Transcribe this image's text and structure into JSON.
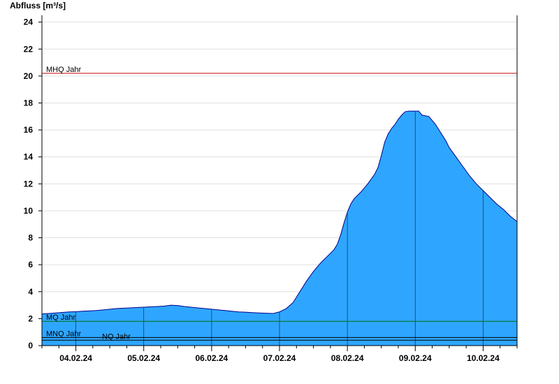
{
  "chart_data": {
    "type": "area",
    "ylabel": "Abfluss [m³/s]",
    "xlabel": "",
    "title": "",
    "ylim": [
      0,
      24.5
    ],
    "yticks": [
      0,
      2,
      4,
      6,
      8,
      10,
      12,
      14,
      16,
      18,
      20,
      22,
      24
    ],
    "x_start_day": 3.5,
    "x_end_day": 10.5,
    "x_tick_labels": [
      "04.02.24",
      "05.02.24",
      "06.02.24",
      "07.02.24",
      "08.02.24",
      "09.02.24",
      "10.02.24"
    ],
    "grid": "horizontal",
    "series": [
      {
        "values": [
          [
            3.5,
            2.35
          ],
          [
            3.6,
            2.38
          ],
          [
            3.7,
            2.42
          ],
          [
            3.8,
            2.46
          ],
          [
            3.9,
            2.5
          ],
          [
            4.0,
            2.52
          ],
          [
            4.1,
            2.55
          ],
          [
            4.2,
            2.58
          ],
          [
            4.3,
            2.6
          ],
          [
            4.4,
            2.65
          ],
          [
            4.5,
            2.7
          ],
          [
            4.6,
            2.75
          ],
          [
            4.7,
            2.78
          ],
          [
            4.8,
            2.8
          ],
          [
            4.9,
            2.83
          ],
          [
            5.0,
            2.85
          ],
          [
            5.1,
            2.88
          ],
          [
            5.2,
            2.9
          ],
          [
            5.3,
            2.93
          ],
          [
            5.4,
            3.0
          ],
          [
            5.5,
            2.97
          ],
          [
            5.6,
            2.9
          ],
          [
            5.7,
            2.85
          ],
          [
            5.8,
            2.8
          ],
          [
            5.9,
            2.75
          ],
          [
            6.0,
            2.7
          ],
          [
            6.1,
            2.65
          ],
          [
            6.2,
            2.6
          ],
          [
            6.3,
            2.55
          ],
          [
            6.4,
            2.5
          ],
          [
            6.5,
            2.48
          ],
          [
            6.6,
            2.45
          ],
          [
            6.7,
            2.42
          ],
          [
            6.8,
            2.4
          ],
          [
            6.9,
            2.38
          ],
          [
            7.0,
            2.5
          ],
          [
            7.1,
            2.75
          ],
          [
            7.2,
            3.2
          ],
          [
            7.3,
            4.0
          ],
          [
            7.4,
            4.8
          ],
          [
            7.5,
            5.5
          ],
          [
            7.6,
            6.1
          ],
          [
            7.7,
            6.6
          ],
          [
            7.8,
            7.1
          ],
          [
            7.85,
            7.5
          ],
          [
            7.9,
            8.2
          ],
          [
            7.95,
            9.1
          ],
          [
            8.0,
            9.9
          ],
          [
            8.05,
            10.5
          ],
          [
            8.1,
            10.9
          ],
          [
            8.2,
            11.4
          ],
          [
            8.3,
            12.0
          ],
          [
            8.4,
            12.7
          ],
          [
            8.45,
            13.2
          ],
          [
            8.5,
            14.1
          ],
          [
            8.55,
            15.1
          ],
          [
            8.6,
            15.7
          ],
          [
            8.65,
            16.1
          ],
          [
            8.7,
            16.4
          ],
          [
            8.75,
            16.8
          ],
          [
            8.8,
            17.1
          ],
          [
            8.85,
            17.35
          ],
          [
            8.9,
            17.4
          ],
          [
            8.95,
            17.4
          ],
          [
            9.0,
            17.4
          ],
          [
            9.05,
            17.4
          ],
          [
            9.1,
            17.1
          ],
          [
            9.2,
            17.0
          ],
          [
            9.25,
            16.7
          ],
          [
            9.3,
            16.4
          ],
          [
            9.35,
            16.0
          ],
          [
            9.4,
            15.6
          ],
          [
            9.45,
            15.2
          ],
          [
            9.5,
            14.7
          ],
          [
            9.6,
            14.0
          ],
          [
            9.7,
            13.3
          ],
          [
            9.8,
            12.6
          ],
          [
            9.9,
            12.0
          ],
          [
            10.0,
            11.5
          ],
          [
            10.1,
            11.0
          ],
          [
            10.2,
            10.5
          ],
          [
            10.3,
            10.1
          ],
          [
            10.4,
            9.6
          ],
          [
            10.5,
            9.2
          ]
        ]
      }
    ],
    "reference_lines": [
      {
        "label": "MHQ Jahr",
        "value": 20.2,
        "color": "#cc0000"
      },
      {
        "label": "MQ Jahr",
        "value": 1.8,
        "color": "#007000"
      },
      {
        "label": "MNQ Jahr",
        "value": 0.6,
        "color": "#000000"
      },
      {
        "label": "NQ Jahr",
        "value": 0.4,
        "color": "#000000"
      }
    ],
    "colors": {
      "area_fill": "#2ea6ff",
      "area_line": "#00008b",
      "grid": "#e0e0e0",
      "axis": "#000000",
      "day_line": "#1a3a5a"
    }
  }
}
